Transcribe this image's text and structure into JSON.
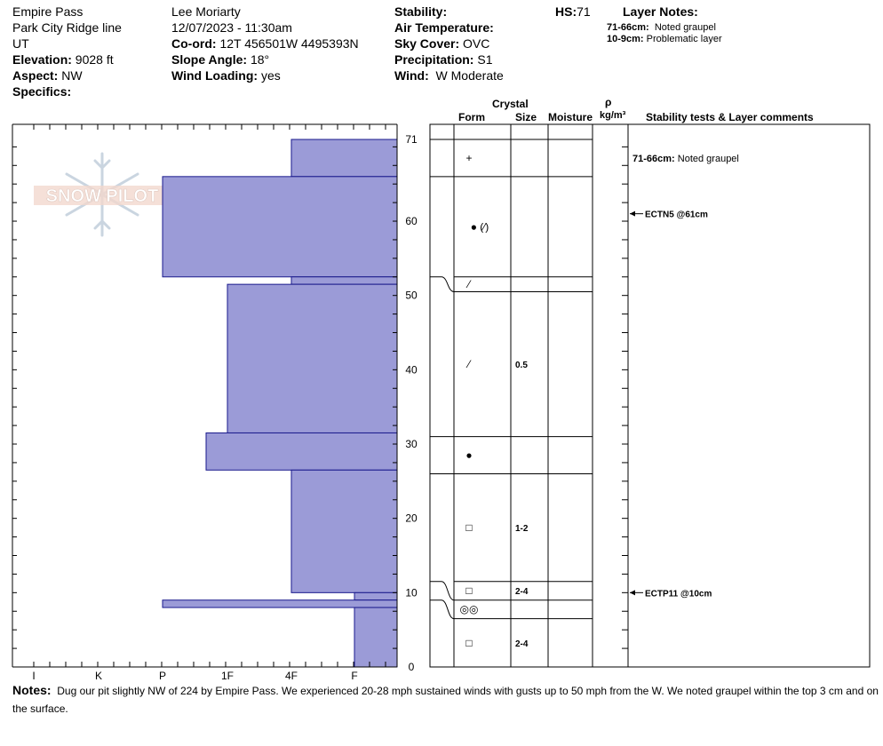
{
  "header": {
    "location": "Empire Pass",
    "range": "Park City Ridge line",
    "state": "UT",
    "elevation_label": "Elevation:",
    "elevation": "9028 ft",
    "aspect_label": "Aspect:",
    "aspect": "NW",
    "specifics_label": "Specifics:",
    "observer": "Lee Moriarty",
    "datetime": "12/07/2023 - 11:30am",
    "coord_label": "Co-ord:",
    "coord": "12T 456501W 4495393N",
    "slope_label": "Slope Angle:",
    "slope": "18°",
    "wind_loading_label": "Wind Loading:",
    "wind_loading": "yes",
    "stability_label": "Stability:",
    "air_temp_label": "Air Temperature:",
    "sky_label": "Sky Cover:",
    "sky": "OVC",
    "precip_label": "Precipitation:",
    "precip": "S1",
    "wind_label": "Wind:",
    "wind": "W Moderate",
    "hs_label": "HS:",
    "hs": "71",
    "layer_notes_label": "Layer Notes:",
    "layer_notes": [
      {
        "range": "71-66cm:",
        "text": "Noted graupel"
      },
      {
        "range": "10-9cm:",
        "text": "Problematic layer"
      }
    ]
  },
  "columns": {
    "crystal": "Crystal",
    "form": "Form",
    "size": "Size",
    "moisture": "Moisture",
    "rho": "ρ",
    "density_unit": "kg/m³",
    "stability": "Stability tests & Layer comments"
  },
  "logo_text": "SNOW PILOT",
  "notes_label": "Notes:",
  "notes": "Dug our pit slightly NW of 224 by Empire Pass. We experienced 20-28 mph sustained winds with gusts up to 50 mph from the W. We noted graupel within the top 3 cm and on the surface.",
  "chart_data": {
    "type": "bar",
    "title": "",
    "xlabel": "",
    "ylabel": "",
    "hardness_ticks": [
      "I",
      "K",
      "P",
      "1F",
      "4F",
      "F"
    ],
    "depth_ticks": [
      0,
      10,
      20,
      30,
      40,
      50,
      60,
      71
    ],
    "ylim": [
      0,
      71
    ],
    "fill_color": "#9b9bd7",
    "edge_color": "#1a1a8c",
    "hardness_layers": [
      {
        "top": 71,
        "bottom": 66,
        "hardness": "4F"
      },
      {
        "top": 66,
        "bottom": 52.5,
        "hardness": "P"
      },
      {
        "top": 52.5,
        "bottom": 51.5,
        "hardness": "4F"
      },
      {
        "top": 51.5,
        "bottom": 31.5,
        "hardness": "1F"
      },
      {
        "top": 31.5,
        "bottom": 26.5,
        "hardness": "1F-"
      },
      {
        "top": 26.5,
        "bottom": 10,
        "hardness": "4F"
      },
      {
        "top": 10,
        "bottom": 9,
        "hardness": "F"
      },
      {
        "top": 9,
        "bottom": 8,
        "hardness": "P"
      },
      {
        "top": 8,
        "bottom": 0,
        "hardness": "F"
      }
    ],
    "grain_layers": [
      {
        "top": 71,
        "bottom": 66,
        "form": "+",
        "size": ""
      },
      {
        "top": 66,
        "bottom": 52.5,
        "form": "● (⁄)",
        "size": ""
      },
      {
        "top": 52.5,
        "bottom": 50.5,
        "form": "⁄",
        "size": ""
      },
      {
        "top": 50.5,
        "bottom": 31,
        "form": "⁄",
        "size": "0.5"
      },
      {
        "top": 31,
        "bottom": 26,
        "form": "●",
        "size": ""
      },
      {
        "top": 26,
        "bottom": 11.5,
        "form": "□",
        "size": "1-2"
      },
      {
        "top": 11.5,
        "bottom": 9,
        "form": "□",
        "size": "2-4"
      },
      {
        "top": 9,
        "bottom": 6.5,
        "form": "◎◎",
        "size": ""
      },
      {
        "top": 6.5,
        "bottom": 0,
        "form": "□",
        "size": "2-4"
      }
    ],
    "comments": [
      {
        "depth": 68.5,
        "range": "71-66cm:",
        "text": "Noted graupel"
      }
    ],
    "stability_tests": [
      {
        "depth": 61,
        "label": "ECTN5 @61cm"
      },
      {
        "depth": 10,
        "label": "ECTP11 @10cm"
      }
    ]
  }
}
